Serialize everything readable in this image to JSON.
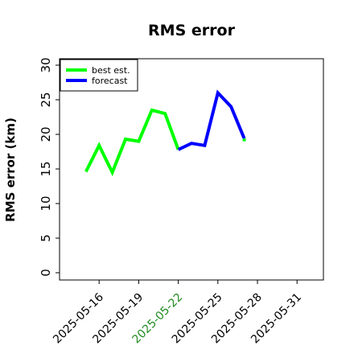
{
  "chart_data": {
    "type": "line",
    "title": "RMS error",
    "xlabel": "",
    "ylabel": "RMS error (km)",
    "xlim": [
      "2025-05-13",
      "2025-06-02"
    ],
    "ylim": [
      0,
      30
    ],
    "yticks": [
      0,
      5,
      10,
      15,
      20,
      25,
      30
    ],
    "xticks": [
      "2025-05-16",
      "2025-05-19",
      "2025-05-22",
      "2025-05-25",
      "2025-05-28",
      "2025-05-31"
    ],
    "highlight_tick": "2025-05-22",
    "highlight_color": "#228b22",
    "grid": false,
    "legend_position": "top-left",
    "series": [
      {
        "name": "best est.",
        "color": "#00ff00",
        "x": [
          "2025-05-15",
          "2025-05-16",
          "2025-05-17",
          "2025-05-18",
          "2025-05-19",
          "2025-05-20",
          "2025-05-21",
          "2025-05-22"
        ],
        "y": [
          14.6,
          18.4,
          14.5,
          19.3,
          19.0,
          23.5,
          23.0,
          17.8
        ]
      },
      {
        "name": "forecast",
        "color": "#0000ff",
        "x": [
          "2025-05-22",
          "2025-05-23",
          "2025-05-24",
          "2025-05-25",
          "2025-05-26",
          "2025-05-27"
        ],
        "y": [
          17.8,
          18.7,
          18.4,
          26.0,
          24.0,
          19.4
        ]
      },
      {
        "name": "",
        "color": "#00ff00",
        "x": [
          "2025-05-27",
          "2025-05-27"
        ],
        "y": [
          19.4,
          19.0
        ]
      }
    ]
  }
}
